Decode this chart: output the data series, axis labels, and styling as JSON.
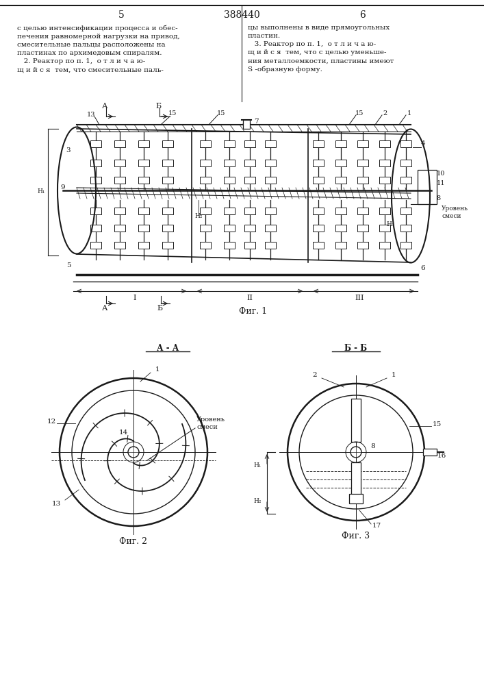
{
  "bg_color": "#ffffff",
  "line_color": "#1a1a1a",
  "page_width": 7.07,
  "page_height": 10.0,
  "header": {
    "left_num": "5",
    "center_num": "388440",
    "right_num": "6"
  },
  "text_block_left": "с целью интенсификации процесса и обес-\nпечения равномерной нагрузки на привод,\nсмесительные пальцы расположены на\nпластинах по архимедовым спиралям.\n   2. Реактор по п. 1,  о т л и ч а ю-\nщ и й с я  тем, что смесительные паль-",
  "text_block_right": "цы выполнены в виде прямоугольных\nпластин.\n   3. Реактор по п. 1,  о т л и ч а ю-\nщ и й с я  тем, что с целью уменьше-\nния металлоемкости, пластины имеют\nS -образную форму.",
  "fig1_caption": "Фиг. 1",
  "fig2_caption": "Фиг. 2",
  "fig3_caption": "Фиг. 3",
  "aa_label": "А - А",
  "bb_label": "Б - Б",
  "urov_smesi_fig1": "Уровень\nсмеси",
  "urov_smesi_fig2": "Уровень\nсмеси"
}
